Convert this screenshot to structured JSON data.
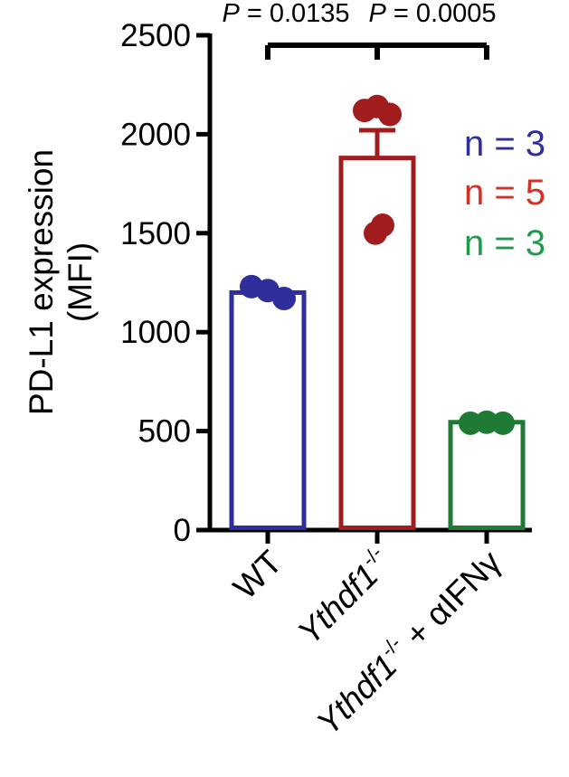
{
  "chart_data": {
    "type": "bar",
    "ylabel_line1": "PD-L1 expression",
    "ylabel_line2": "(MFI)",
    "ylim": [
      0,
      2500
    ],
    "yticks": [
      0,
      500,
      1000,
      1500,
      2000,
      2500
    ],
    "ytick_labels": [
      "0",
      "500",
      "1000",
      "1500",
      "2000",
      "2500"
    ],
    "categories": [
      {
        "name": "WT",
        "main": "WT",
        "sup": "",
        "suffix": "",
        "color": "#2e2e9c",
        "mean": 1200,
        "sem": 0,
        "points": [
          1230,
          1210,
          1170
        ],
        "n_label": "n = 3"
      },
      {
        "name": "Ythdf1-/-",
        "main": "Ythdf1",
        "sup": "-/-",
        "suffix": "",
        "color": "#a11d1d",
        "mean": 1880,
        "sem": 140,
        "points": [
          2120,
          2140,
          2100,
          1540,
          1500
        ],
        "n_label": "n = 5"
      },
      {
        "name": "Ythdf1-/- + αIFNγ",
        "main": "Ythdf1",
        "sup": "-/-",
        "suffix": " + αIFNγ",
        "color": "#1f7a33",
        "mean": 545,
        "sem": 0,
        "points": [
          540,
          545,
          540
        ],
        "n_label": "n = 3"
      }
    ],
    "n_label_colors": [
      "#2e2e9c",
      "#d62f24",
      "#1f9c4a"
    ],
    "comparisons": [
      {
        "from": "Ythdf1-/-",
        "to": "WT",
        "label_prefix": "P",
        "label_value": " = 0.0135"
      },
      {
        "from": "Ythdf1-/-",
        "to": "Ythdf1-/- + αIFNγ",
        "label_prefix": "P",
        "label_value": " = 0.0005"
      }
    ]
  }
}
